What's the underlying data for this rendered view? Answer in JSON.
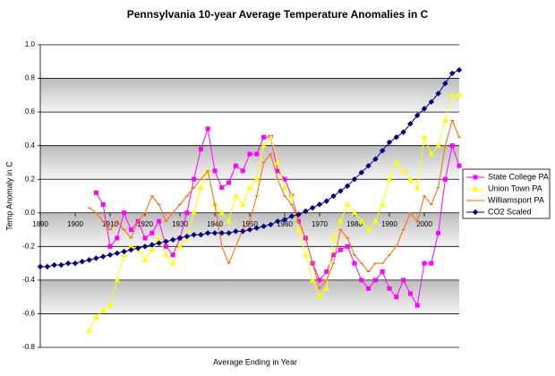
{
  "chart_data": {
    "type": "line",
    "title": "Pennsylvania 10-year Average Temperature Anomalies in C",
    "x_label": "Average Ending in Year",
    "y_label": "Temp Anomaly in C",
    "xlim": [
      1890,
      2010
    ],
    "xticks": [
      1890,
      1900,
      1910,
      1920,
      1930,
      1940,
      1950,
      1960,
      1970,
      1980,
      1990,
      2000
    ],
    "ylim": [
      -0.8,
      1.0
    ],
    "yticks": [
      -0.8,
      -0.6,
      -0.4,
      -0.2,
      {
        "value": 0,
        "label": "0.0"
      },
      0.2,
      0.4,
      0.6,
      0.8,
      {
        "value": 1,
        "label": "1.0"
      }
    ],
    "grid": true,
    "legend": "right",
    "x": [
      1890,
      1892,
      1894,
      1896,
      1898,
      1900,
      1902,
      1904,
      1906,
      1908,
      1910,
      1912,
      1914,
      1916,
      1918,
      1920,
      1922,
      1924,
      1926,
      1928,
      1930,
      1932,
      1934,
      1936,
      1938,
      1940,
      1942,
      1944,
      1946,
      1948,
      1950,
      1952,
      1954,
      1956,
      1958,
      1960,
      1962,
      1964,
      1966,
      1968,
      1970,
      1972,
      1974,
      1976,
      1978,
      1980,
      1982,
      1984,
      1986,
      1988,
      1990,
      1992,
      1994,
      1996,
      1998,
      2000,
      2002,
      2004,
      2006,
      2008,
      2010
    ],
    "series": [
      {
        "name": "State College PA",
        "color": "#ff00ff",
        "marker": "square",
        "values": [
          null,
          null,
          null,
          null,
          null,
          null,
          null,
          null,
          0.12,
          0.05,
          -0.2,
          -0.15,
          0.0,
          -0.1,
          -0.05,
          -0.15,
          -0.12,
          -0.05,
          -0.2,
          -0.25,
          -0.15,
          0.0,
          0.2,
          0.38,
          0.5,
          0.25,
          0.15,
          0.18,
          0.28,
          0.25,
          0.35,
          0.35,
          0.45,
          0.45,
          0.25,
          0.2,
          0.1,
          -0.05,
          -0.15,
          -0.3,
          -0.4,
          -0.35,
          -0.25,
          -0.22,
          -0.2,
          -0.3,
          -0.4,
          -0.45,
          -0.4,
          -0.35,
          -0.45,
          -0.5,
          -0.4,
          -0.48,
          -0.55,
          -0.3,
          -0.3,
          -0.12,
          0.2,
          0.4,
          0.28
        ]
      },
      {
        "name": "Union Town PA",
        "color": "#ffff00",
        "marker": "triangle",
        "values": [
          null,
          null,
          null,
          null,
          null,
          null,
          null,
          -0.7,
          -0.62,
          -0.58,
          -0.55,
          -0.4,
          -0.25,
          -0.2,
          -0.22,
          -0.28,
          -0.22,
          -0.15,
          -0.25,
          -0.3,
          -0.2,
          -0.15,
          0.0,
          0.15,
          0.25,
          0.05,
          0.0,
          -0.05,
          0.1,
          0.05,
          0.15,
          0.2,
          0.4,
          0.45,
          0.3,
          0.15,
          0.1,
          -0.1,
          -0.25,
          -0.4,
          -0.5,
          -0.45,
          -0.15,
          -0.05,
          0.05,
          0.0,
          -0.05,
          -0.1,
          -0.05,
          0.05,
          0.2,
          0.3,
          0.25,
          0.2,
          0.15,
          0.45,
          0.35,
          0.4,
          0.55,
          0.7,
          0.7
        ]
      },
      {
        "name": "Williamsport PA",
        "color": "#ff6600",
        "marker": "dash",
        "values": [
          null,
          null,
          null,
          null,
          null,
          null,
          null,
          0.03,
          0.0,
          -0.05,
          -0.1,
          -0.05,
          -0.1,
          -0.15,
          -0.05,
          0.0,
          0.1,
          0.05,
          -0.05,
          0.0,
          0.05,
          0.1,
          0.15,
          0.2,
          0.25,
          0.05,
          -0.2,
          -0.3,
          -0.2,
          -0.1,
          -0.05,
          0.1,
          0.3,
          0.35,
          0.2,
          0.1,
          0.05,
          -0.05,
          -0.15,
          -0.3,
          -0.45,
          -0.4,
          -0.3,
          -0.1,
          -0.15,
          -0.25,
          -0.3,
          -0.35,
          -0.3,
          -0.3,
          -0.25,
          -0.2,
          -0.1,
          0.0,
          -0.05,
          0.1,
          0.05,
          0.15,
          0.4,
          0.55,
          0.45
        ]
      },
      {
        "name": "CO2 Scaled",
        "color": "#000080",
        "marker": "diamond",
        "values": [
          -0.32,
          -0.32,
          -0.31,
          -0.31,
          -0.3,
          -0.3,
          -0.29,
          -0.28,
          -0.27,
          -0.26,
          -0.25,
          -0.24,
          -0.23,
          -0.22,
          -0.21,
          -0.2,
          -0.19,
          -0.18,
          -0.17,
          -0.16,
          -0.15,
          -0.14,
          -0.13,
          -0.13,
          -0.12,
          -0.12,
          -0.12,
          -0.12,
          -0.11,
          -0.11,
          -0.1,
          -0.09,
          -0.08,
          -0.07,
          -0.05,
          -0.04,
          -0.02,
          -0.01,
          0.01,
          0.03,
          0.05,
          0.07,
          0.1,
          0.13,
          0.16,
          0.2,
          0.24,
          0.28,
          0.32,
          0.37,
          0.42,
          0.45,
          0.48,
          0.53,
          0.58,
          0.62,
          0.66,
          0.71,
          0.77,
          0.83,
          0.85
        ]
      }
    ]
  }
}
